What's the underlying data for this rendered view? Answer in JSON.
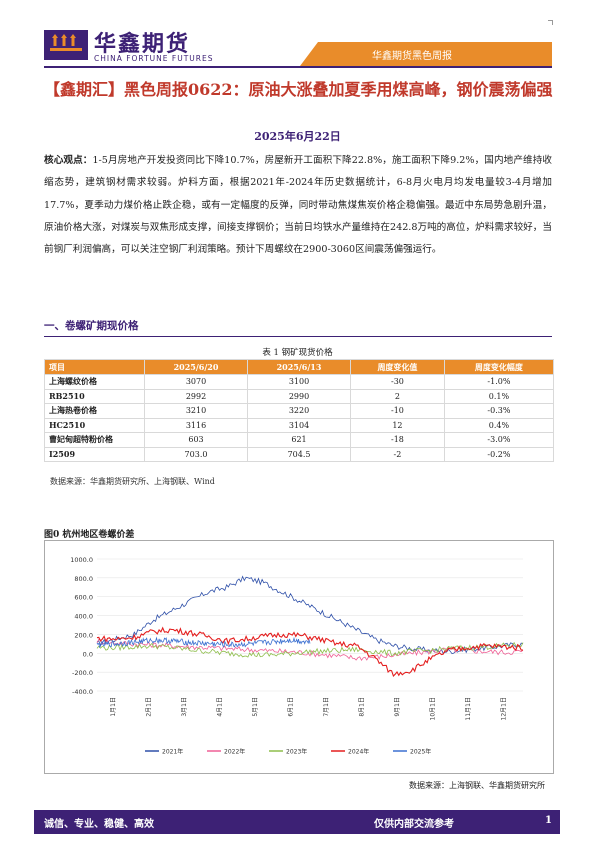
{
  "header": {
    "logo_cn": "华鑫期货",
    "logo_en": "CHINA FORTUNE FUTURES",
    "report_series": "华鑫期货黑色周报"
  },
  "title": "【鑫期汇】黑色周报0622：原油大涨叠加夏季用煤高峰，钢价震荡偏强",
  "date": "2025年6月22日",
  "summary": {
    "lead": "核心观点：",
    "body": "1-5月房地产开发投资同比下降10.7%，房屋新开工面积下降22.8%，施工面积下降9.2%，国内地产维持收缩态势，建筑钢材需求较弱。炉料方面，根据2021年-2024年历史数据统计，6-8月火电月均发电量较3-4月增加17.7%，夏季动力煤价格止跌企稳，或有一定幅度的反弹，同时带动焦煤焦炭价格企稳偏强。最近中东局势急剧升温，原油价格大涨，对煤炭与双焦形成支撑，间接支撑钢价；当前日均铁水产量维持在242.8万吨的高位，炉料需求较好，当前钢厂利润偏高，可以关注空钢厂利润策略。预计下周螺纹在2900-3060区间震荡偏强运行。"
  },
  "section1": "一、卷螺矿期现价格",
  "table": {
    "caption": "表 1 钢矿现货价格",
    "headers": [
      "项目",
      "2025/6/20",
      "2025/6/13",
      "周度变化值",
      "周度变化幅度"
    ],
    "rows": [
      [
        "上海螺纹价格",
        "3070",
        "3100",
        "-30",
        "-1.0%"
      ],
      [
        "RB2510",
        "2992",
        "2990",
        "2",
        "0.1%"
      ],
      [
        "上海热卷价格",
        "3210",
        "3220",
        "-10",
        "-0.3%"
      ],
      [
        "HC2510",
        "3116",
        "3104",
        "12",
        "0.4%"
      ],
      [
        "曹妃甸超特粉价格",
        "603",
        "621",
        "-18",
        "-3.0%"
      ],
      [
        "I2509",
        "703.0",
        "704.5",
        "-2",
        "-0.2%"
      ]
    ],
    "source": "数据来源：华鑫期货研究所、上海钢联、Wind"
  },
  "chart": {
    "title": "图0 杭州地区卷螺价差",
    "source": "数据来源：上海钢联、华鑫期货研究所"
  },
  "chart_data": {
    "type": "line",
    "title": "图0 杭州地区卷螺价差",
    "ylim": [
      -400,
      1000
    ],
    "yticks": [
      "1000.0",
      "800.0",
      "600.0",
      "400.0",
      "200.0",
      "0.0",
      "-200.0",
      "-400.0"
    ],
    "xticks": [
      "1月1日",
      "2月1日",
      "3月1日",
      "4月1日",
      "5月1日",
      "6月1日",
      "7月1日",
      "8月1日",
      "9月1日",
      "10月1日",
      "11月1日",
      "12月1日"
    ],
    "series": [
      {
        "name": "2021年",
        "color": "#2e4fa8",
        "values": [
          100,
          150,
          200,
          350,
          450,
          550,
          650,
          700,
          800,
          750,
          650,
          550,
          450,
          350,
          250,
          150,
          80,
          50,
          30,
          20,
          40,
          60,
          80,
          100
        ]
      },
      {
        "name": "2022年",
        "color": "#ef5f95",
        "values": [
          130,
          110,
          100,
          90,
          80,
          70,
          60,
          50,
          40,
          30,
          20,
          10,
          -10,
          -30,
          -50,
          -40,
          -20,
          0,
          20,
          40,
          30,
          20,
          10,
          20
        ]
      },
      {
        "name": "2023年",
        "color": "#8dbd4a",
        "values": [
          60,
          60,
          70,
          80,
          60,
          40,
          20,
          0,
          -10,
          -20,
          -10,
          10,
          20,
          30,
          40,
          20,
          0,
          20,
          30,
          50,
          60,
          70,
          80,
          90
        ]
      },
      {
        "name": "2024年",
        "color": "#e41e1e",
        "values": [
          160,
          150,
          170,
          230,
          250,
          220,
          180,
          130,
          150,
          180,
          200,
          190,
          150,
          100,
          80,
          -50,
          -220,
          -180,
          -60,
          30,
          60,
          80,
          70,
          60
        ]
      },
      {
        "name": "2025年",
        "color": "#3a6fd0",
        "values": [
          90,
          100,
          120,
          140,
          130,
          110,
          100,
          90,
          100,
          120,
          140,
          120
        ]
      }
    ]
  }
}
